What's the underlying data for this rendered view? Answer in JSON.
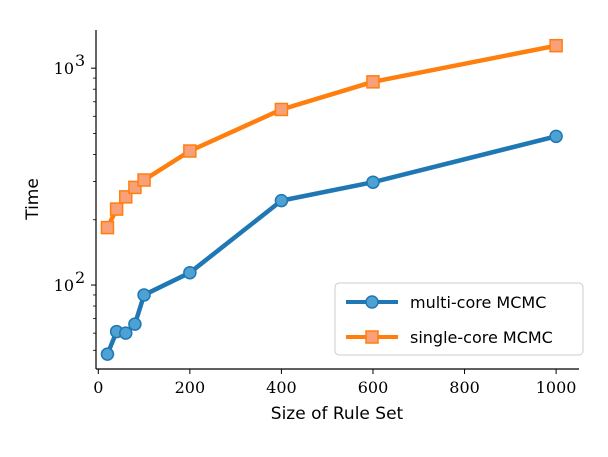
{
  "chart_data": {
    "type": "line",
    "title": "",
    "xlabel": "Size of Rule Set",
    "ylabel": "Time",
    "xlim": [
      -5,
      1050
    ],
    "ylim": [
      41,
      1500
    ],
    "yscale": "log",
    "grid": false,
    "legend_position": "bottom-right",
    "x_ticks": [
      0,
      200,
      400,
      600,
      800,
      1000
    ],
    "y_ticks": [
      {
        "value": 100,
        "base": "10",
        "exp": "2"
      },
      {
        "value": 1000,
        "base": "10",
        "exp": "3"
      }
    ],
    "series": [
      {
        "name": "multi-core MCMC",
        "color": "#1f77b4",
        "marker": "circle",
        "x": [
          20,
          40,
          60,
          80,
          100,
          200,
          400,
          600,
          1000
        ],
        "y": [
          48,
          61,
          60,
          66,
          90,
          114,
          245,
          298,
          485
        ]
      },
      {
        "name": "single-core MCMC",
        "color": "#ff7f0e",
        "marker": "square",
        "x": [
          20,
          40,
          60,
          80,
          100,
          200,
          400,
          600,
          1000
        ],
        "y": [
          184,
          224,
          255,
          282,
          305,
          415,
          645,
          865,
          1270
        ]
      }
    ]
  }
}
